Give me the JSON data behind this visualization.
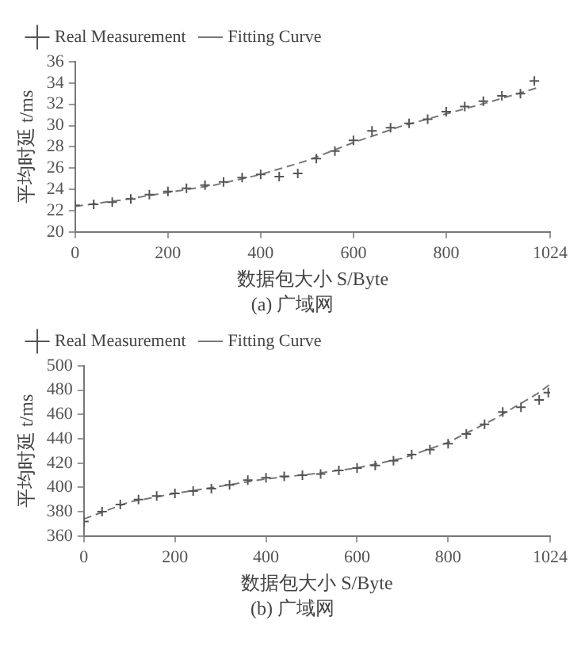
{
  "chart_data": [
    {
      "type": "scatter",
      "title": "(a) 广域网",
      "xlabel": "数据包大小 S/Byte",
      "ylabel": "平均时延 t/ms",
      "xlim": [
        0,
        1024
      ],
      "xticks": [
        0,
        200,
        400,
        600,
        800,
        1024
      ],
      "ylim": [
        20,
        36
      ],
      "yticks": [
        20,
        22,
        24,
        26,
        28,
        30,
        32,
        34,
        36
      ],
      "legend": "top left",
      "grid": false,
      "series": [
        {
          "name": "Real Measurement",
          "marker": "cross",
          "color": "#555555",
          "x": [
            0,
            40,
            80,
            120,
            160,
            200,
            240,
            280,
            320,
            360,
            400,
            440,
            480,
            520,
            560,
            600,
            640,
            680,
            720,
            760,
            800,
            840,
            880,
            920,
            960,
            990
          ],
          "values": [
            22.5,
            22.6,
            22.8,
            23.1,
            23.5,
            23.8,
            24.1,
            24.4,
            24.7,
            25.1,
            25.4,
            25.2,
            25.5,
            26.9,
            27.6,
            28.6,
            29.5,
            29.8,
            30.2,
            30.6,
            31.3,
            31.8,
            32.3,
            32.8,
            33.0,
            34.2
          ]
        },
        {
          "name": "Fitting Curve",
          "type": "line",
          "marker": "none",
          "line_style": "dashed",
          "color": "#777777",
          "x": [
            0,
            100,
            200,
            300,
            400,
            500,
            600,
            700,
            800,
            900,
            1000
          ],
          "values": [
            22.4,
            23.0,
            23.7,
            24.4,
            25.4,
            26.7,
            28.4,
            29.9,
            31.1,
            32.3,
            33.6
          ]
        }
      ]
    },
    {
      "type": "scatter",
      "title": "(b) 广域网",
      "xlabel": "数据包大小 S/Byte",
      "ylabel": "平均时延 t/ms",
      "xlim": [
        0,
        1024
      ],
      "xticks": [
        0,
        200,
        400,
        600,
        800,
        1024
      ],
      "ylim": [
        360,
        500
      ],
      "yticks": [
        360,
        380,
        400,
        420,
        440,
        460,
        480,
        500
      ],
      "legend": "top left",
      "grid": false,
      "series": [
        {
          "name": "Real Measurement",
          "marker": "cross",
          "color": "#555555",
          "x": [
            0,
            40,
            80,
            120,
            160,
            200,
            240,
            280,
            320,
            360,
            400,
            440,
            480,
            520,
            560,
            600,
            640,
            680,
            720,
            760,
            800,
            840,
            880,
            920,
            960,
            1000,
            1020
          ],
          "values": [
            372,
            380,
            386,
            390,
            393,
            395,
            397,
            399,
            402,
            406,
            408,
            409,
            410,
            411,
            414,
            416,
            418,
            422,
            427,
            431,
            436,
            444,
            452,
            462,
            466,
            472,
            478
          ]
        },
        {
          "name": "Fitting Curve",
          "type": "line",
          "marker": "none",
          "line_style": "dashed",
          "color": "#777777",
          "x": [
            0,
            100,
            200,
            300,
            400,
            500,
            600,
            700,
            800,
            900,
            1000,
            1024
          ],
          "values": [
            374,
            388,
            395,
            401,
            407,
            411,
            416,
            424,
            437,
            456,
            478,
            485
          ]
        }
      ]
    }
  ]
}
